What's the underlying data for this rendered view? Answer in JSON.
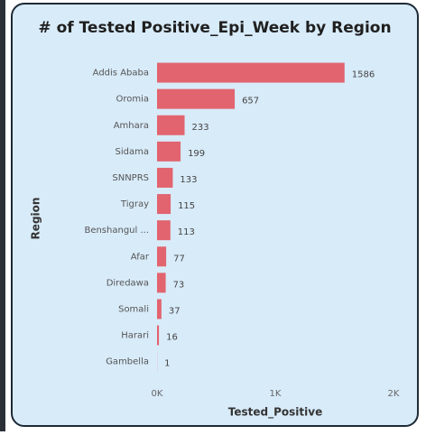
{
  "chart_data": {
    "type": "bar",
    "orientation": "horizontal",
    "title": "# of Tested Positive_Epi_Week by Region",
    "x_label": "Tested_Positive",
    "y_label": "Region",
    "categories": [
      "Addis Ababa",
      "Oromia",
      "Amhara",
      "Sidama",
      "SNNPRS",
      "Tigray",
      "Benshangul ...",
      "Afar",
      "Diredawa",
      "Somali",
      "Harari",
      "Gambella"
    ],
    "values": [
      1586,
      657,
      233,
      199,
      133,
      115,
      113,
      77,
      73,
      37,
      16,
      1
    ],
    "color": "#e2646e",
    "xlim": [
      0,
      2000
    ],
    "xticks": [
      {
        "value": 0,
        "label": "0K"
      },
      {
        "value": 1000,
        "label": "1K"
      },
      {
        "value": 2000,
        "label": "2K"
      }
    ],
    "grid": false
  }
}
